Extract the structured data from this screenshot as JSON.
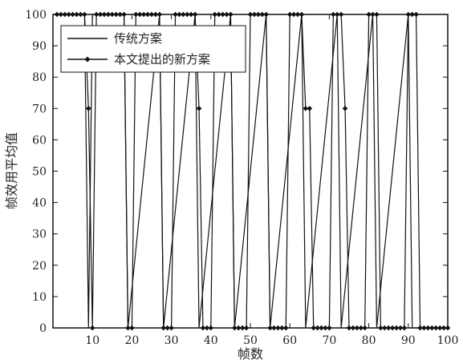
{
  "chart_data": {
    "type": "line",
    "xlabel": "帧数",
    "ylabel": "帧效用平均值",
    "xlim": [
      0,
      100
    ],
    "ylim": [
      0,
      100
    ],
    "xticks": [
      10,
      20,
      30,
      40,
      50,
      60,
      70,
      80,
      90,
      100
    ],
    "yticks": [
      0,
      10,
      20,
      30,
      40,
      50,
      60,
      70,
      80,
      90,
      100
    ],
    "grid": false,
    "legend_position": "top-left",
    "series": [
      {
        "name": "传统方案",
        "marker": "none",
        "x": [
          0,
          8,
          9,
          10,
          18,
          19,
          27,
          28,
          36,
          37,
          45,
          46,
          54,
          55,
          63,
          64,
          72,
          73,
          81,
          82,
          90,
          91,
          100
        ],
        "y": [
          100,
          100,
          0,
          100,
          100,
          0,
          100,
          0,
          100,
          0,
          100,
          0,
          100,
          0,
          100,
          0,
          100,
          0,
          100,
          0,
          100,
          0,
          0
        ]
      },
      {
        "name": "本文提出的新方案",
        "marker": "diamond",
        "x": [
          1,
          2,
          3,
          4,
          5,
          6,
          7,
          8,
          9,
          10,
          11,
          12,
          13,
          14,
          15,
          16,
          17,
          18,
          19,
          20,
          21,
          22,
          23,
          24,
          25,
          26,
          27,
          28,
          29,
          30,
          31,
          32,
          33,
          34,
          35,
          36,
          37,
          38,
          39,
          40,
          41,
          42,
          43,
          44,
          45,
          46,
          47,
          48,
          49,
          50,
          51,
          52,
          53,
          54,
          55,
          56,
          57,
          58,
          59,
          60,
          61,
          62,
          63,
          64,
          65,
          66,
          67,
          68,
          69,
          70,
          71,
          72,
          73,
          74,
          75,
          76,
          77,
          78,
          79,
          80,
          81,
          82,
          83,
          84,
          85,
          86,
          87,
          88,
          89,
          90,
          91,
          92,
          93,
          94,
          95,
          96,
          97,
          98,
          99,
          100
        ],
        "y": [
          100,
          100,
          100,
          100,
          100,
          100,
          100,
          100,
          70,
          0,
          100,
          100,
          100,
          100,
          100,
          100,
          100,
          100,
          0,
          0,
          100,
          100,
          100,
          100,
          100,
          100,
          100,
          0,
          0,
          0,
          100,
          100,
          100,
          100,
          100,
          100,
          70,
          0,
          0,
          0,
          100,
          100,
          100,
          100,
          100,
          0,
          0,
          0,
          0,
          100,
          100,
          100,
          100,
          100,
          0,
          0,
          0,
          0,
          0,
          100,
          100,
          100,
          100,
          70,
          70,
          0,
          0,
          0,
          0,
          0,
          100,
          100,
          100,
          70,
          0,
          0,
          0,
          0,
          0,
          100,
          100,
          100,
          0,
          0,
          0,
          0,
          0,
          0,
          0,
          100,
          100,
          100,
          0,
          0,
          0,
          0,
          0,
          0,
          0,
          0
        ]
      }
    ]
  },
  "colors": {
    "line": "#111111",
    "background": "#ffffff"
  }
}
